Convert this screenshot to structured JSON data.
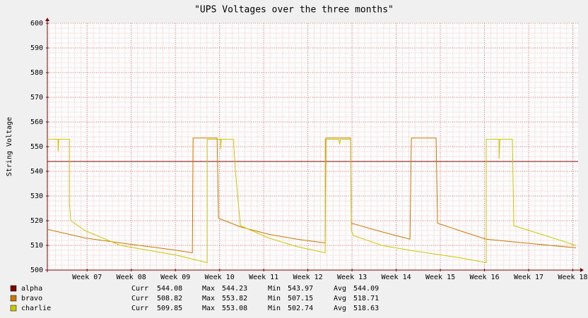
{
  "chart_data": {
    "type": "line",
    "title": "\"UPS Voltages over the three months\"",
    "y_label": "String Voltage",
    "xlim": [
      6.1,
      18.12
    ],
    "xticks": [
      {
        "value": 7,
        "label": "Week 07"
      },
      {
        "value": 8,
        "label": "Week 08"
      },
      {
        "value": 9,
        "label": "Week 09"
      },
      {
        "value": 10,
        "label": "Week 10"
      },
      {
        "value": 11,
        "label": "Week 11"
      },
      {
        "value": 12,
        "label": "Week 12"
      },
      {
        "value": 13,
        "label": "Week 13"
      },
      {
        "value": 14,
        "label": "Week 14"
      },
      {
        "value": 15,
        "label": "Week 15"
      },
      {
        "value": 16,
        "label": "Week 16"
      },
      {
        "value": 17,
        "label": "Week 17"
      },
      {
        "value": 18,
        "label": "Week 18"
      }
    ],
    "ylim": [
      500,
      600
    ],
    "yticks": [
      500,
      510,
      520,
      530,
      540,
      550,
      560,
      570,
      580,
      590,
      600
    ],
    "grid": true,
    "stat_labels": [
      "Curr",
      "Max",
      "Min",
      "Avg"
    ],
    "series": [
      {
        "name": "alpha",
        "color": "#800000",
        "x": [
          6.1,
          18.12
        ],
        "values": [
          544,
          544
        ],
        "stats": [
          544.08,
          544.23,
          543.97,
          544.09
        ]
      },
      {
        "name": "bravo",
        "color": "#c87800",
        "x": [
          6.1,
          6.952,
          7.752,
          9.032,
          9.384,
          9.4,
          9.944,
          9.976,
          10.472,
          11.112,
          11.752,
          12.392,
          12.408,
          12.968,
          12.984,
          13.672,
          14.312,
          14.344,
          14.904,
          14.936,
          15.432,
          16.04,
          17.192,
          18.072
        ],
        "values": [
          516.5,
          513,
          511,
          508,
          507,
          553.5,
          553.5,
          521,
          517.5,
          514.5,
          512.5,
          511,
          553.5,
          553.5,
          519,
          515.5,
          512.5,
          553.5,
          553.5,
          519,
          516,
          512.5,
          510.5,
          509
        ],
        "stats": [
          508.82,
          553.82,
          507.15,
          518.71
        ]
      },
      {
        "name": "charlie",
        "color": "#c8c800",
        "x": [
          6.1,
          6.34,
          6.344,
          6.36,
          6.6,
          6.6,
          6.632,
          6.952,
          7.752,
          9.032,
          9.72,
          9.72,
          10.024,
          10.024,
          10.04,
          10.312,
          10.36,
          10.472,
          11.112,
          11.752,
          12.392,
          12.392,
          12.7,
          12.72,
          12.74,
          12.968,
          12.984,
          13.032,
          13.672,
          14.312,
          15.432,
          16.04,
          16.04,
          16.328,
          16.33,
          16.35,
          16.632,
          16.664,
          17.192,
          18.072
        ],
        "values": [
          553,
          553,
          548,
          553,
          553,
          527,
          520,
          516,
          510,
          506,
          503,
          553,
          553,
          549,
          553,
          553,
          540,
          518,
          513,
          509.5,
          507,
          553,
          553,
          551,
          553,
          553,
          516,
          514,
          510,
          508,
          505,
          503,
          553,
          553,
          545,
          553,
          553,
          518,
          515,
          510
        ],
        "stats": [
          509.85,
          553.08,
          502.74,
          518.63
        ]
      }
    ]
  }
}
